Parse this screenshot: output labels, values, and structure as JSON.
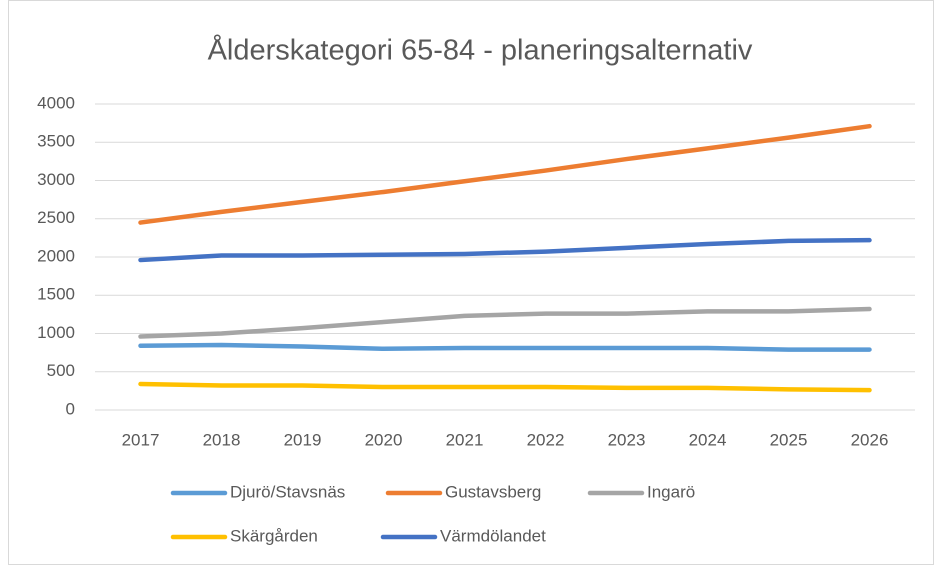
{
  "chart_data": {
    "type": "line",
    "title": "Ålderskategori 65-84 - planeringsalternativ",
    "categories": [
      "2017",
      "2018",
      "2019",
      "2020",
      "2021",
      "2022",
      "2023",
      "2024",
      "2025",
      "2026"
    ],
    "series": [
      {
        "name": "Djurö/Stavsnäs",
        "color": "#5b9bd5",
        "values": [
          840,
          850,
          830,
          800,
          810,
          810,
          810,
          810,
          790,
          790
        ]
      },
      {
        "name": "Gustavsberg",
        "color": "#ed7d31",
        "values": [
          2450,
          2590,
          2720,
          2850,
          2990,
          3130,
          3280,
          3420,
          3560,
          3710
        ]
      },
      {
        "name": "Ingarö",
        "color": "#a5a5a5",
        "values": [
          960,
          1000,
          1070,
          1150,
          1230,
          1260,
          1260,
          1290,
          1290,
          1320
        ]
      },
      {
        "name": "Skärgården",
        "color": "#ffc000",
        "values": [
          340,
          320,
          320,
          300,
          300,
          300,
          290,
          290,
          270,
          260
        ]
      },
      {
        "name": "Värmdölandet",
        "color": "#4472c4",
        "values": [
          1960,
          2020,
          2020,
          2030,
          2040,
          2070,
          2120,
          2170,
          2210,
          2220
        ]
      }
    ],
    "ylim": [
      0,
      4000
    ],
    "yticks": [
      0,
      500,
      1000,
      1500,
      2000,
      2500,
      3000,
      3500,
      4000
    ],
    "grid": true,
    "legend": "bottom"
  }
}
